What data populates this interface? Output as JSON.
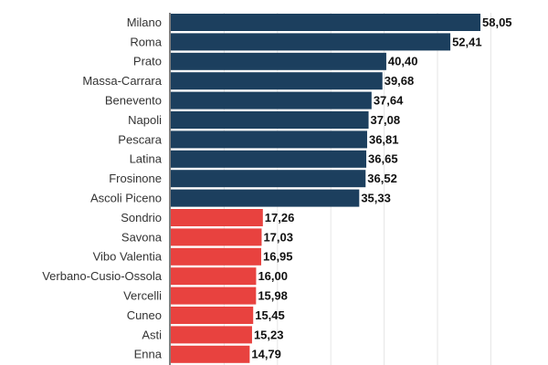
{
  "chart_data": {
    "type": "bar",
    "orientation": "horizontal",
    "categories": [
      "Milano",
      "Roma",
      "Prato",
      "Massa-Carrara",
      "Benevento",
      "Napoli",
      "Pescara",
      "Latina",
      "Frosinone",
      "Ascoli Piceno",
      "Sondrio",
      "Savona",
      "Vibo Valentia",
      "Verbano-Cusio-Ossola",
      "Vercelli",
      "Cuneo",
      "Asti",
      "Enna"
    ],
    "values": [
      58.05,
      52.41,
      40.4,
      39.68,
      37.64,
      37.08,
      36.81,
      36.65,
      36.52,
      35.33,
      17.26,
      17.03,
      16.95,
      16.0,
      15.98,
      15.45,
      15.23,
      14.79
    ],
    "value_labels": [
      "58,05",
      "52,41",
      "40,40",
      "39,68",
      "37,64",
      "37,08",
      "36,81",
      "36,65",
      "36,52",
      "35,33",
      "17,26",
      "17,03",
      "16,95",
      "16,00",
      "15,98",
      "15,45",
      "15,23",
      "14,79"
    ],
    "bar_colors": [
      "#1c3f5e",
      "#1c3f5e",
      "#1c3f5e",
      "#1c3f5e",
      "#1c3f5e",
      "#1c3f5e",
      "#1c3f5e",
      "#1c3f5e",
      "#1c3f5e",
      "#1c3f5e",
      "#e8423f",
      "#e8423f",
      "#e8423f",
      "#e8423f",
      "#e8423f",
      "#e8423f",
      "#e8423f",
      "#e8423f"
    ],
    "xlim": [
      0,
      60
    ],
    "grid": true,
    "grid_step": 10
  }
}
